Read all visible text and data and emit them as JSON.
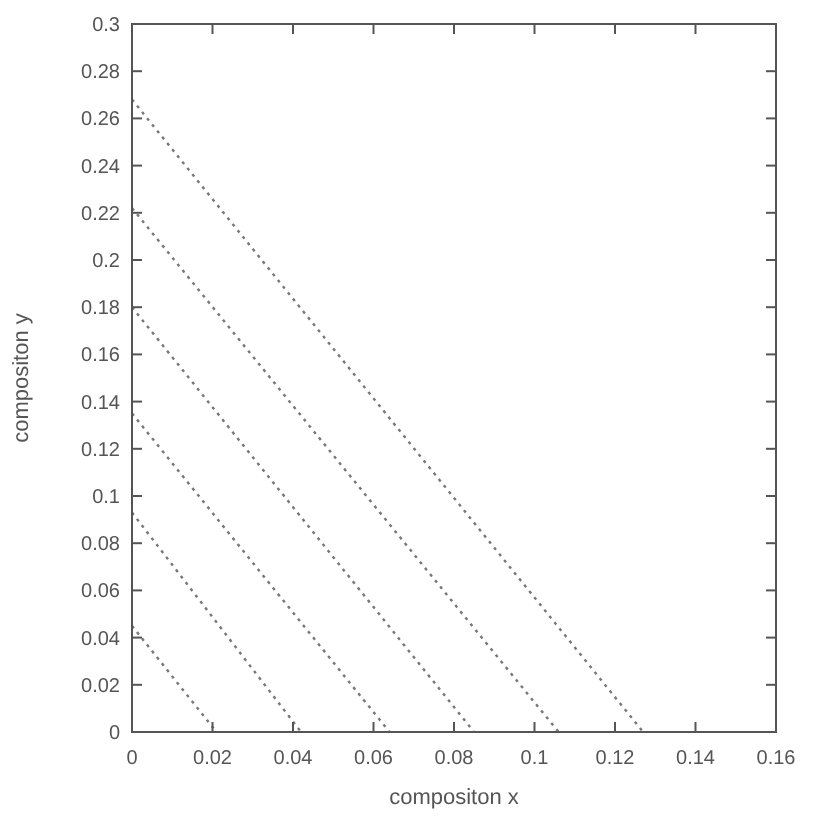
{
  "chart_data": {
    "type": "line",
    "xlabel": "compositon x",
    "ylabel": "compositon y",
    "xlim": [
      0,
      0.16
    ],
    "ylim": [
      0,
      0.3
    ],
    "xticks": [
      0,
      0.02,
      0.04,
      0.06,
      0.08,
      0.1,
      0.12,
      0.14,
      0.16
    ],
    "yticks": [
      0,
      0.02,
      0.04,
      0.06,
      0.08,
      0.1,
      0.12,
      0.14,
      0.16,
      0.18,
      0.2,
      0.22,
      0.24,
      0.26,
      0.28,
      0.3
    ],
    "line_style": "dotted",
    "grid": false,
    "series": [
      {
        "color": "#777777",
        "x": [
          0,
          0.021
        ],
        "values": [
          0.045,
          0
        ]
      },
      {
        "color": "#777777",
        "x": [
          0,
          0.042
        ],
        "values": [
          0.093,
          0
        ]
      },
      {
        "color": "#777777",
        "x": [
          0,
          0.064
        ],
        "values": [
          0.135,
          0
        ]
      },
      {
        "color": "#777777",
        "x": [
          0,
          0.085
        ],
        "values": [
          0.18,
          0
        ]
      },
      {
        "color": "#777777",
        "x": [
          0,
          0.106
        ],
        "values": [
          0.222,
          0
        ]
      },
      {
        "color": "#777777",
        "x": [
          0,
          0.127
        ],
        "values": [
          0.268,
          0
        ]
      }
    ]
  }
}
